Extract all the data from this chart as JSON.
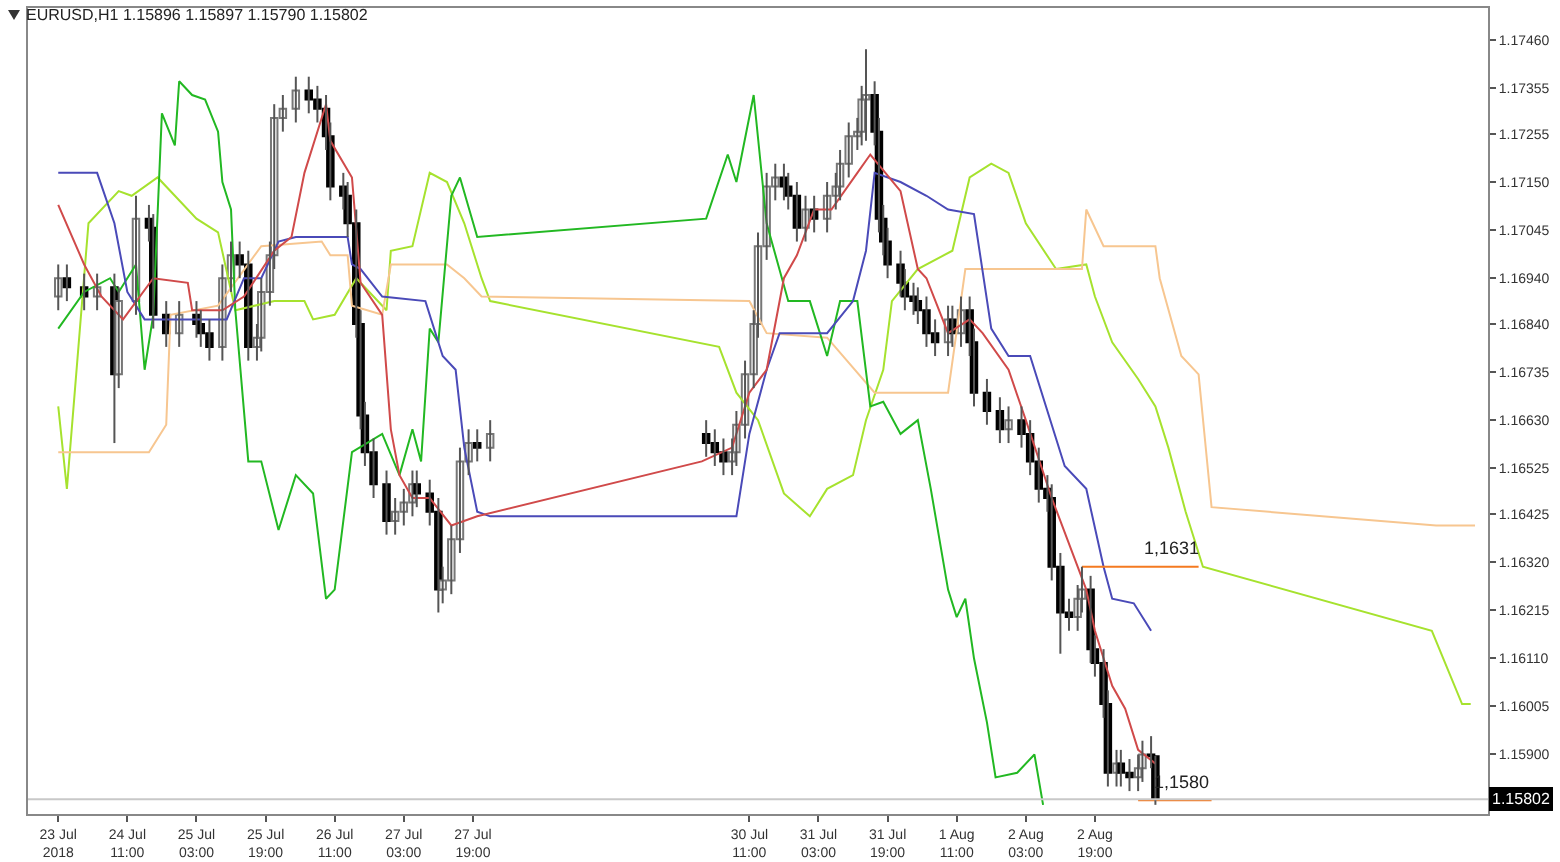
{
  "chart_data": {
    "type": "candlestick",
    "title": "EURUSD,H1  1.15896 1.15897 1.15790 1.15802",
    "x": [
      "2018-07-23T19:00",
      "2018-07-23T21:00",
      "2018-07-24T01:00",
      "2018-07-24T04:00",
      "2018-07-24T08:00",
      "2018-07-24T09:00",
      "2018-07-24T13:00",
      "2018-07-24T16:00",
      "2018-07-24T17:00",
      "2018-07-24T20:00",
      "2018-07-24T23:00",
      "2018-07-25T03:00",
      "2018-07-25T04:00",
      "2018-07-25T06:00",
      "2018-07-25T09:00",
      "2018-07-25T11:00",
      "2018-07-25T13:00",
      "2018-07-25T15:00",
      "2018-07-25T17:00",
      "2018-07-25T18:00",
      "2018-07-25T20:00",
      "2018-07-25T21:00",
      "2018-07-25T23:00",
      "2018-07-26T02:00",
      "2018-07-26T05:00",
      "2018-07-26T07:00",
      "2018-07-26T09:00",
      "2018-07-26T10:00",
      "2018-07-26T13:00",
      "2018-07-26T14:00",
      "2018-07-26T16:00",
      "2018-07-26T17:00",
      "2018-07-26T18:00",
      "2018-07-26T20:00",
      "2018-07-26T23:00",
      "2018-07-27T01:00",
      "2018-07-27T03:00",
      "2018-07-27T05:00",
      "2018-07-27T06:00",
      "2018-07-27T09:00",
      "2018-07-27T11:00",
      "2018-07-27T12:00",
      "2018-07-27T14:00",
      "2018-07-27T16:00",
      "2018-07-27T18:00",
      "2018-07-27T20:00",
      "2018-07-27T23:00",
      "2018-07-30T01:00",
      "2018-07-30T03:00",
      "2018-07-30T05:00",
      "2018-07-30T07:00",
      "2018-07-30T08:00",
      "2018-07-30T10:00",
      "2018-07-30T12:00",
      "2018-07-30T13:00",
      "2018-07-30T15:00",
      "2018-07-30T17:00",
      "2018-07-30T19:00",
      "2018-07-30T20:00",
      "2018-07-30T22:00",
      "2018-07-31T00:00",
      "2018-07-31T02:00",
      "2018-07-31T05:00",
      "2018-07-31T07:00",
      "2018-07-31T08:00",
      "2018-07-31T10:00",
      "2018-07-31T12:00",
      "2018-07-31T13:00",
      "2018-07-31T14:00",
      "2018-07-31T16:00",
      "2018-07-31T17:00",
      "2018-07-31T18:00",
      "2018-07-31T19:00",
      "2018-07-31T22:00",
      "2018-07-31T23:00",
      "2018-08-01T01:00",
      "2018-08-01T02:00",
      "2018-08-01T04:00",
      "2018-08-01T06:00",
      "2018-08-01T09:00",
      "2018-08-01T10:00",
      "2018-08-01T12:00",
      "2018-08-01T14:00",
      "2018-08-01T15:00",
      "2018-08-01T18:00",
      "2018-08-01T21:00",
      "2018-08-01T23:00",
      "2018-08-02T02:00",
      "2018-08-02T04:00",
      "2018-08-02T06:00",
      "2018-08-02T08:00",
      "2018-08-02T09:00",
      "2018-08-02T11:00",
      "2018-08-02T13:00",
      "2018-08-02T15:00",
      "2018-08-02T16:00",
      "2018-08-02T18:00",
      "2018-08-02T19:00",
      "2018-08-02T21:00",
      "2018-08-02T22:00",
      "2018-08-03T00:00",
      "2018-08-03T01:00",
      "2018-08-03T03:00",
      "2018-08-03T05:00",
      "2018-08-03T06:00",
      "2018-08-03T08:00",
      "2018-08-03T09:00"
    ],
    "ohlc": [
      [
        1.169,
        1.1697,
        1.1687,
        1.1694
      ],
      [
        1.1694,
        1.1697,
        1.1689,
        1.1692
      ],
      [
        1.1692,
        1.1695,
        1.1687,
        1.169
      ],
      [
        1.169,
        1.1695,
        1.1687,
        1.1692
      ],
      [
        1.1692,
        1.1695,
        1.1658,
        1.1673
      ],
      [
        1.1673,
        1.1692,
        1.167,
        1.1689
      ],
      [
        1.1689,
        1.1712,
        1.1686,
        1.1707
      ],
      [
        1.1707,
        1.171,
        1.1702,
        1.1705
      ],
      [
        1.1705,
        1.1708,
        1.1683,
        1.1686
      ],
      [
        1.1686,
        1.1689,
        1.1679,
        1.1682
      ],
      [
        1.1682,
        1.1689,
        1.1679,
        1.1686
      ],
      [
        1.1686,
        1.1689,
        1.1681,
        1.1684
      ],
      [
        1.1684,
        1.1687,
        1.1679,
        1.1682
      ],
      [
        1.1682,
        1.1685,
        1.1676,
        1.1679
      ],
      [
        1.1679,
        1.1697,
        1.1676,
        1.1694
      ],
      [
        1.1694,
        1.1702,
        1.1691,
        1.1699
      ],
      [
        1.1699,
        1.1702,
        1.1694,
        1.1697
      ],
      [
        1.1697,
        1.17,
        1.1676,
        1.1679
      ],
      [
        1.1679,
        1.1684,
        1.1676,
        1.1681
      ],
      [
        1.1681,
        1.1694,
        1.1678,
        1.1691
      ],
      [
        1.1691,
        1.1702,
        1.1688,
        1.1699
      ],
      [
        1.1699,
        1.1732,
        1.1696,
        1.1729
      ],
      [
        1.1729,
        1.1734,
        1.1726,
        1.1731
      ],
      [
        1.1731,
        1.1738,
        1.1728,
        1.1735
      ],
      [
        1.1735,
        1.1738,
        1.173,
        1.1733
      ],
      [
        1.1733,
        1.1736,
        1.1728,
        1.1731
      ],
      [
        1.1731,
        1.1734,
        1.1722,
        1.1725
      ],
      [
        1.1725,
        1.1728,
        1.1711,
        1.1714
      ],
      [
        1.1714,
        1.1717,
        1.1709,
        1.1712
      ],
      [
        1.1712,
        1.1715,
        1.1703,
        1.1706
      ],
      [
        1.1706,
        1.1709,
        1.1681,
        1.1684
      ],
      [
        1.1684,
        1.1687,
        1.1661,
        1.1664
      ],
      [
        1.1664,
        1.1667,
        1.1653,
        1.1656
      ],
      [
        1.1656,
        1.1659,
        1.1646,
        1.1649
      ],
      [
        1.1649,
        1.1652,
        1.1638,
        1.1641
      ],
      [
        1.1641,
        1.1646,
        1.1638,
        1.1643
      ],
      [
        1.1643,
        1.1648,
        1.164,
        1.1645
      ],
      [
        1.1645,
        1.1652,
        1.1642,
        1.1649
      ],
      [
        1.1649,
        1.1652,
        1.1644,
        1.1647
      ],
      [
        1.1647,
        1.165,
        1.164,
        1.1643
      ],
      [
        1.1643,
        1.1646,
        1.1621,
        1.1626
      ],
      [
        1.1626,
        1.1631,
        1.1623,
        1.1628
      ],
      [
        1.1628,
        1.164,
        1.1625,
        1.1637
      ],
      [
        1.1637,
        1.1657,
        1.1634,
        1.1654
      ],
      [
        1.1654,
        1.1661,
        1.1651,
        1.1658
      ],
      [
        1.1658,
        1.1661,
        1.1654,
        1.1657
      ],
      [
        1.1657,
        1.1663,
        1.1654,
        1.166
      ],
      [
        1.166,
        1.1663,
        1.1655,
        1.1658
      ],
      [
        1.1658,
        1.1661,
        1.1653,
        1.1656
      ],
      [
        1.1656,
        1.1659,
        1.1651,
        1.1654
      ],
      [
        1.1654,
        1.1659,
        1.1651,
        1.1656
      ],
      [
        1.1656,
        1.1665,
        1.1653,
        1.1662
      ],
      [
        1.1662,
        1.1676,
        1.1659,
        1.1673
      ],
      [
        1.1673,
        1.1687,
        1.167,
        1.1684
      ],
      [
        1.1684,
        1.1704,
        1.1681,
        1.1701
      ],
      [
        1.1701,
        1.1717,
        1.1698,
        1.1714
      ],
      [
        1.1714,
        1.1719,
        1.1711,
        1.1716
      ],
      [
        1.1716,
        1.1719,
        1.1711,
        1.1714
      ],
      [
        1.1714,
        1.1717,
        1.1709,
        1.1712
      ],
      [
        1.1712,
        1.1715,
        1.1702,
        1.1705
      ],
      [
        1.1705,
        1.1712,
        1.1702,
        1.1709
      ],
      [
        1.1709,
        1.1712,
        1.1704,
        1.1707
      ],
      [
        1.1707,
        1.1715,
        1.1704,
        1.1712
      ],
      [
        1.1712,
        1.1717,
        1.1709,
        1.1714
      ],
      [
        1.1714,
        1.1722,
        1.1711,
        1.1719
      ],
      [
        1.1719,
        1.1728,
        1.1716,
        1.1725
      ],
      [
        1.1725,
        1.1729,
        1.1722,
        1.1726
      ],
      [
        1.1726,
        1.1736,
        1.1723,
        1.1733
      ],
      [
        1.1733,
        1.1744,
        1.1724,
        1.1734
      ],
      [
        1.1734,
        1.1737,
        1.1723,
        1.1726
      ],
      [
        1.1726,
        1.1729,
        1.1704,
        1.1707
      ],
      [
        1.1707,
        1.171,
        1.1699,
        1.1702
      ],
      [
        1.1702,
        1.1705,
        1.1694,
        1.1697
      ],
      [
        1.1697,
        1.17,
        1.169,
        1.1693
      ],
      [
        1.1693,
        1.1696,
        1.1687,
        1.169
      ],
      [
        1.169,
        1.1693,
        1.1686,
        1.1689
      ],
      [
        1.1689,
        1.1692,
        1.1684,
        1.1687
      ],
      [
        1.1687,
        1.169,
        1.1679,
        1.1682
      ],
      [
        1.1682,
        1.1685,
        1.1677,
        1.168
      ],
      [
        1.168,
        1.1688,
        1.1677,
        1.1685
      ],
      [
        1.1685,
        1.1688,
        1.1679,
        1.1682
      ],
      [
        1.1682,
        1.169,
        1.1679,
        1.1687
      ],
      [
        1.1687,
        1.169,
        1.1677,
        1.168
      ],
      [
        1.168,
        1.1683,
        1.1666,
        1.1669
      ],
      [
        1.1669,
        1.1672,
        1.1662,
        1.1665
      ],
      [
        1.1665,
        1.1668,
        1.1658,
        1.1661
      ],
      [
        1.1661,
        1.1666,
        1.1658,
        1.1663
      ],
      [
        1.1663,
        1.1666,
        1.1657,
        1.166
      ],
      [
        1.166,
        1.1663,
        1.1651,
        1.1654
      ],
      [
        1.1654,
        1.1657,
        1.1645,
        1.1648
      ],
      [
        1.1648,
        1.1651,
        1.1643,
        1.1646
      ],
      [
        1.1646,
        1.1649,
        1.1628,
        1.1631
      ],
      [
        1.1631,
        1.1634,
        1.1612,
        1.1621
      ],
      [
        1.1621,
        1.1624,
        1.1617,
        1.162
      ],
      [
        1.162,
        1.1627,
        1.1617,
        1.1624
      ],
      [
        1.1624,
        1.1631,
        1.1621,
        1.1626
      ],
      [
        1.1626,
        1.1629,
        1.161,
        1.1613
      ],
      [
        1.1613,
        1.1616,
        1.1607,
        1.161
      ],
      [
        1.161,
        1.1613,
        1.1598,
        1.1601
      ],
      [
        1.1601,
        1.1604,
        1.1583,
        1.1586
      ],
      [
        1.1586,
        1.1591,
        1.1583,
        1.1588
      ],
      [
        1.1588,
        1.1591,
        1.1583,
        1.1586
      ],
      [
        1.1586,
        1.1589,
        1.1582,
        1.1585
      ],
      [
        1.1585,
        1.159,
        1.1582,
        1.1587
      ],
      [
        1.1587,
        1.1593,
        1.1584,
        1.159
      ],
      [
        1.159,
        1.1594,
        1.1587,
        1.15896
      ],
      [
        1.15896,
        1.15897,
        1.1579,
        1.15802
      ]
    ],
    "series": [
      {
        "type": "line",
        "color": "#a6e22e",
        "x": [
          "2018-07-23T19:00",
          "2018-07-23T21:00",
          "2018-07-24T02:00",
          "2018-07-24T09:00",
          "2018-07-24T12:00",
          "2018-07-24T18:00",
          "2018-07-24T22:00",
          "2018-07-25T03:00",
          "2018-07-25T08:00",
          "2018-07-25T12:00",
          "2018-07-25T21:00",
          "2018-07-26T04:00",
          "2018-07-26T06:00",
          "2018-07-26T11:00",
          "2018-07-26T16:00",
          "2018-07-26T23:00",
          "2018-07-27T00:00",
          "2018-07-27T05:00",
          "2018-07-27T09:00",
          "2018-07-27T13:00",
          "2018-07-27T17:00",
          "2018-07-27T21:00",
          "2018-07-27T23:00",
          "2018-07-30T04:00",
          "2018-07-30T08:00",
          "2018-07-30T13:00",
          "2018-07-30T19:00",
          "2018-07-31T01:00",
          "2018-07-31T05:00",
          "2018-07-31T11:00",
          "2018-07-31T14:00",
          "2018-07-31T18:00",
          "2018-07-31T20:00",
          "2018-08-01T02:00",
          "2018-08-01T10:00",
          "2018-08-01T14:00",
          "2018-08-01T19:00",
          "2018-08-01T23:00",
          "2018-08-02T03:00",
          "2018-08-02T10:00",
          "2018-08-02T17:00",
          "2018-08-02T19:00",
          "2018-08-02T23:00",
          "2018-08-03T05:00",
          "2018-08-03T09:00",
          "2018-08-03T12:00",
          "2018-08-03T16:00",
          "2018-08-03T20:00",
          "2018-08-06T01:00",
          "2018-08-06T08:00",
          "2018-08-06T10:00"
        ],
        "values": [
          1.1666,
          1.1648,
          1.1706,
          1.1713,
          1.1712,
          1.1716,
          1.1712,
          1.1707,
          1.1704,
          1.1687,
          1.1689,
          1.1689,
          1.1685,
          1.1686,
          1.1694,
          1.1687,
          1.17,
          1.1701,
          1.1717,
          1.1715,
          1.1706,
          1.1694,
          1.1689,
          1.1679,
          1.1669,
          1.1663,
          1.1647,
          1.1642,
          1.1648,
          1.1651,
          1.1663,
          1.1674,
          1.1689,
          1.1696,
          1.17,
          1.1716,
          1.1719,
          1.1717,
          1.1706,
          1.1696,
          1.1697,
          1.169,
          1.168,
          1.1672,
          1.1666,
          1.1657,
          1.1643,
          1.1631,
          1.1617,
          1.1601,
          1.1601
        ]
      },
      {
        "type": "line",
        "color": "#f7c690",
        "x": [
          "2018-07-23T19:00",
          "2018-07-24T16:00",
          "2018-07-24T20:00",
          "2018-07-24T21:00",
          "2018-07-25T08:00",
          "2018-07-25T18:00",
          "2018-07-26T08:00",
          "2018-07-26T10:00",
          "2018-07-26T14:00",
          "2018-07-26T15:00",
          "2018-07-26T22:00",
          "2018-07-27T00:00",
          "2018-07-27T13:00",
          "2018-07-27T17:00",
          "2018-07-27T21:00",
          "2018-07-30T11:00",
          "2018-07-30T15:00",
          "2018-07-31T05:00",
          "2018-07-31T16:00",
          "2018-08-01T09:00",
          "2018-08-01T13:00",
          "2018-08-02T16:00",
          "2018-08-02T17:00",
          "2018-08-02T21:00",
          "2018-08-03T09:00",
          "2018-08-03T10:00",
          "2018-08-03T15:00",
          "2018-08-03T19:00",
          "2018-08-03T22:00",
          "2018-08-06T02:00",
          "2018-08-06T11:00"
        ],
        "values": [
          1.1656,
          1.1656,
          1.1662,
          1.1686,
          1.1688,
          1.1701,
          1.1702,
          1.1699,
          1.1699,
          1.1688,
          1.1686,
          1.1697,
          1.1697,
          1.1694,
          1.169,
          1.1689,
          1.1682,
          1.1681,
          1.1669,
          1.1669,
          1.1696,
          1.1696,
          1.1709,
          1.1701,
          1.1701,
          1.1694,
          1.1677,
          1.1673,
          1.1644,
          1.164,
          1.164
        ]
      },
      {
        "type": "line",
        "color": "#22b822",
        "x": [
          "2018-07-23T19:00",
          "2018-07-24T01:00",
          "2018-07-24T07:00",
          "2018-07-24T09:00",
          "2018-07-24T13:00",
          "2018-07-24T15:00",
          "2018-07-24T17:00",
          "2018-07-24T19:00",
          "2018-07-24T22:00",
          "2018-07-24T23:00",
          "2018-07-25T02:00",
          "2018-07-25T05:00",
          "2018-07-25T08:00",
          "2018-07-25T09:00",
          "2018-07-25T11:00",
          "2018-07-25T12:00",
          "2018-07-25T15:00",
          "2018-07-25T18:00",
          "2018-07-25T22:00",
          "2018-07-26T02:00",
          "2018-07-26T06:00",
          "2018-07-26T09:00",
          "2018-07-26T11:00",
          "2018-07-26T15:00",
          "2018-07-26T22:00",
          "2018-07-27T02:00",
          "2018-07-27T05:00",
          "2018-07-27T07:00",
          "2018-07-27T09:00",
          "2018-07-27T11:00",
          "2018-07-27T14:00",
          "2018-07-27T16:00",
          "2018-07-27T20:00",
          "2018-07-30T01:00",
          "2018-07-30T06:00",
          "2018-07-30T08:00",
          "2018-07-30T12:00",
          "2018-07-30T15:00",
          "2018-07-30T20:00",
          "2018-07-31T01:00",
          "2018-07-31T05:00",
          "2018-07-31T08:00",
          "2018-07-31T12:00",
          "2018-07-31T15:00",
          "2018-07-31T18:00",
          "2018-07-31T22:00",
          "2018-08-01T02:00",
          "2018-08-01T05:00",
          "2018-08-01T09:00",
          "2018-08-01T11:00",
          "2018-08-01T13:00",
          "2018-08-01T15:00",
          "2018-08-01T18:00",
          "2018-08-01T20:00",
          "2018-08-02T01:00",
          "2018-08-02T05:00",
          "2018-08-02T07:00"
        ],
        "values": [
          1.1683,
          1.1691,
          1.1694,
          1.1691,
          1.1697,
          1.1674,
          1.1686,
          1.173,
          1.1723,
          1.1737,
          1.1734,
          1.1733,
          1.1726,
          1.1715,
          1.1709,
          1.1687,
          1.1654,
          1.1654,
          1.1639,
          1.1651,
          1.1647,
          1.1624,
          1.1626,
          1.1656,
          1.166,
          1.1651,
          1.1661,
          1.1654,
          1.1683,
          1.168,
          1.1712,
          1.1716,
          1.1703,
          1.1707,
          1.1721,
          1.1715,
          1.1734,
          1.1706,
          1.1689,
          1.1689,
          1.1677,
          1.1689,
          1.1689,
          1.1666,
          1.1667,
          1.166,
          1.1663,
          1.1648,
          1.1626,
          1.162,
          1.1624,
          1.1611,
          1.1597,
          1.1585,
          1.1586,
          1.159,
          1.1579
        ]
      },
      {
        "type": "line",
        "color": "#4a4ab8",
        "x": [
          "2018-07-23T19:00",
          "2018-07-24T04:00",
          "2018-07-24T08:00",
          "2018-07-24T11:00",
          "2018-07-24T15:00",
          "2018-07-25T10:00",
          "2018-07-25T14:00",
          "2018-07-25T18:00",
          "2018-07-25T22:00",
          "2018-07-26T02:00",
          "2018-07-26T14:00",
          "2018-07-26T15:00",
          "2018-07-26T17:00",
          "2018-07-26T22:00",
          "2018-07-27T08:00",
          "2018-07-27T12:00",
          "2018-07-27T15:00",
          "2018-07-27T17:00",
          "2018-07-27T20:00",
          "2018-07-27T23:00",
          "2018-07-30T08:00",
          "2018-07-30T11:00",
          "2018-07-30T15:00",
          "2018-07-30T18:00",
          "2018-07-31T05:00",
          "2018-07-31T11:00",
          "2018-07-31T14:00",
          "2018-07-31T16:00",
          "2018-07-31T22:00",
          "2018-08-01T04:00",
          "2018-08-01T09:00",
          "2018-08-01T15:00",
          "2018-08-01T19:00",
          "2018-08-01T23:00",
          "2018-08-02T04:00",
          "2018-08-02T12:00",
          "2018-08-02T17:00",
          "2018-08-02T21:00",
          "2018-08-02T23:00",
          "2018-08-03T04:00",
          "2018-08-03T08:00"
        ],
        "values": [
          1.1717,
          1.1717,
          1.1706,
          1.1691,
          1.1685,
          1.1685,
          1.1694,
          1.1694,
          1.1702,
          1.1703,
          1.1703,
          1.1697,
          1.1696,
          1.169,
          1.1689,
          1.1677,
          1.1674,
          1.1657,
          1.1643,
          1.1642,
          1.1642,
          1.166,
          1.1674,
          1.1682,
          1.1682,
          1.1689,
          1.17,
          1.1717,
          1.1715,
          1.1712,
          1.1709,
          1.1708,
          1.1683,
          1.1677,
          1.1677,
          1.1653,
          1.1648,
          1.1631,
          1.1624,
          1.1623,
          1.1617
        ]
      },
      {
        "type": "line",
        "color": "#d04a4a",
        "x": [
          "2018-07-23T19:00",
          "2018-07-24T01:00",
          "2018-07-24T05:00",
          "2018-07-24T10:00",
          "2018-07-24T17:00",
          "2018-07-25T01:00",
          "2018-07-25T02:00",
          "2018-07-25T09:00",
          "2018-07-25T14:00",
          "2018-07-25T21:00",
          "2018-07-26T01:00",
          "2018-07-26T04:00",
          "2018-07-26T09:00",
          "2018-07-26T10:00",
          "2018-07-26T15:00",
          "2018-07-26T17:00",
          "2018-07-26T22:00",
          "2018-07-27T00:00",
          "2018-07-27T02:00",
          "2018-07-27T05:00",
          "2018-07-27T09:00",
          "2018-07-27T14:00",
          "2018-07-27T20:00",
          "2018-07-30T00:00",
          "2018-07-30T07:00",
          "2018-07-30T11:00",
          "2018-07-30T15:00",
          "2018-07-30T19:00",
          "2018-07-30T22:00",
          "2018-07-31T02:00",
          "2018-07-31T06:00",
          "2018-07-31T12:00",
          "2018-07-31T15:00",
          "2018-07-31T22:00",
          "2018-08-01T02:00",
          "2018-08-01T04:00",
          "2018-08-01T09:00",
          "2018-08-01T14:00",
          "2018-08-01T17:00",
          "2018-08-01T23:00",
          "2018-08-02T03:00",
          "2018-08-02T09:00",
          "2018-08-02T15:00",
          "2018-08-02T17:00",
          "2018-08-02T19:00",
          "2018-08-02T23:00",
          "2018-08-03T02:00",
          "2018-08-03T05:00",
          "2018-08-03T09:00"
        ],
        "values": [
          1.171,
          1.1697,
          1.169,
          1.1685,
          1.1694,
          1.1693,
          1.1687,
          1.1687,
          1.169,
          1.17,
          1.1703,
          1.1717,
          1.1732,
          1.1724,
          1.1716,
          1.1693,
          1.1686,
          1.1661,
          1.1651,
          1.1646,
          1.1646,
          1.164,
          1.1642,
          1.1654,
          1.1657,
          1.1669,
          1.1674,
          1.1694,
          1.1699,
          1.1709,
          1.1709,
          1.1717,
          1.1721,
          1.1713,
          1.1696,
          1.1694,
          1.1682,
          1.1685,
          1.1682,
          1.1674,
          1.1663,
          1.1646,
          1.1631,
          1.1626,
          1.1617,
          1.1605,
          1.16,
          1.1591,
          1.1588
        ]
      },
      {
        "type": "line",
        "color": "#f47a20",
        "x": [
          "2018-08-02T16:00",
          "2018-08-03T19:00"
        ],
        "values": [
          1.1631,
          1.1631
        ]
      },
      {
        "type": "line",
        "color": "#f47a20",
        "x": [
          "2018-08-03T05:00",
          "2018-08-03T22:00"
        ],
        "values": [
          1.158,
          1.158
        ]
      }
    ],
    "annotations": [
      {
        "text": "1,1631",
        "x": "2018-08-03T13:00",
        "y": 1.1631
      },
      {
        "text": "1,1580",
        "x": "2018-08-03T15:00",
        "y": 1.158
      }
    ],
    "ref_lines": [
      {
        "axis": "y",
        "value": 1.15802,
        "label": "1.15802",
        "color": "#c8c8c8"
      }
    ],
    "xlim": [
      "2018-07-23T12:00",
      "2018-08-06T14:00"
    ],
    "xticks": [
      {
        "value": "2018-07-23T19:00",
        "label": "23 Jul 2018"
      },
      {
        "value": "2018-07-24T11:00",
        "label": "24 Jul 11:00"
      },
      {
        "value": "2018-07-25T03:00",
        "label": "25 Jul 03:00"
      },
      {
        "value": "2018-07-25T19:00",
        "label": "25 Jul 19:00"
      },
      {
        "value": "2018-07-26T11:00",
        "label": "26 Jul 11:00"
      },
      {
        "value": "2018-07-27T03:00",
        "label": "27 Jul 03:00"
      },
      {
        "value": "2018-07-27T19:00",
        "label": "27 Jul 19:00"
      },
      {
        "value": "2018-07-30T11:00",
        "label": "30 Jul 11:00"
      },
      {
        "value": "2018-07-31T03:00",
        "label": "31 Jul 03:00"
      },
      {
        "value": "2018-07-31T19:00",
        "label": "31 Jul 19:00"
      },
      {
        "value": "2018-08-01T11:00",
        "label": "1 Aug 11:00"
      },
      {
        "value": "2018-08-02T03:00",
        "label": "2 Aug 03:00"
      },
      {
        "value": "2018-08-02T19:00",
        "label": "2 Aug 19:00"
      }
    ],
    "ylim": [
      1.1577,
      1.1753
    ],
    "yticks": [
      {
        "value": 1.1746,
        "label": "1.17460"
      },
      {
        "value": 1.17355,
        "label": "1.17355"
      },
      {
        "value": 1.17255,
        "label": "1.17255"
      },
      {
        "value": 1.1715,
        "label": "1.17150"
      },
      {
        "value": 1.17045,
        "label": "1.17045"
      },
      {
        "value": 1.1694,
        "label": "1.16940"
      },
      {
        "value": 1.1684,
        "label": "1.16840"
      },
      {
        "value": 1.16735,
        "label": "1.16735"
      },
      {
        "value": 1.1663,
        "label": "1.16630"
      },
      {
        "value": 1.16525,
        "label": "1.16525"
      },
      {
        "value": 1.16425,
        "label": "1.16425"
      },
      {
        "value": 1.1632,
        "label": "1.16320"
      },
      {
        "value": 1.16215,
        "label": "1.16215"
      },
      {
        "value": 1.1611,
        "label": "1.16110"
      },
      {
        "value": 1.16005,
        "label": "1.16005"
      },
      {
        "value": 1.159,
        "label": "1.15900"
      }
    ]
  }
}
